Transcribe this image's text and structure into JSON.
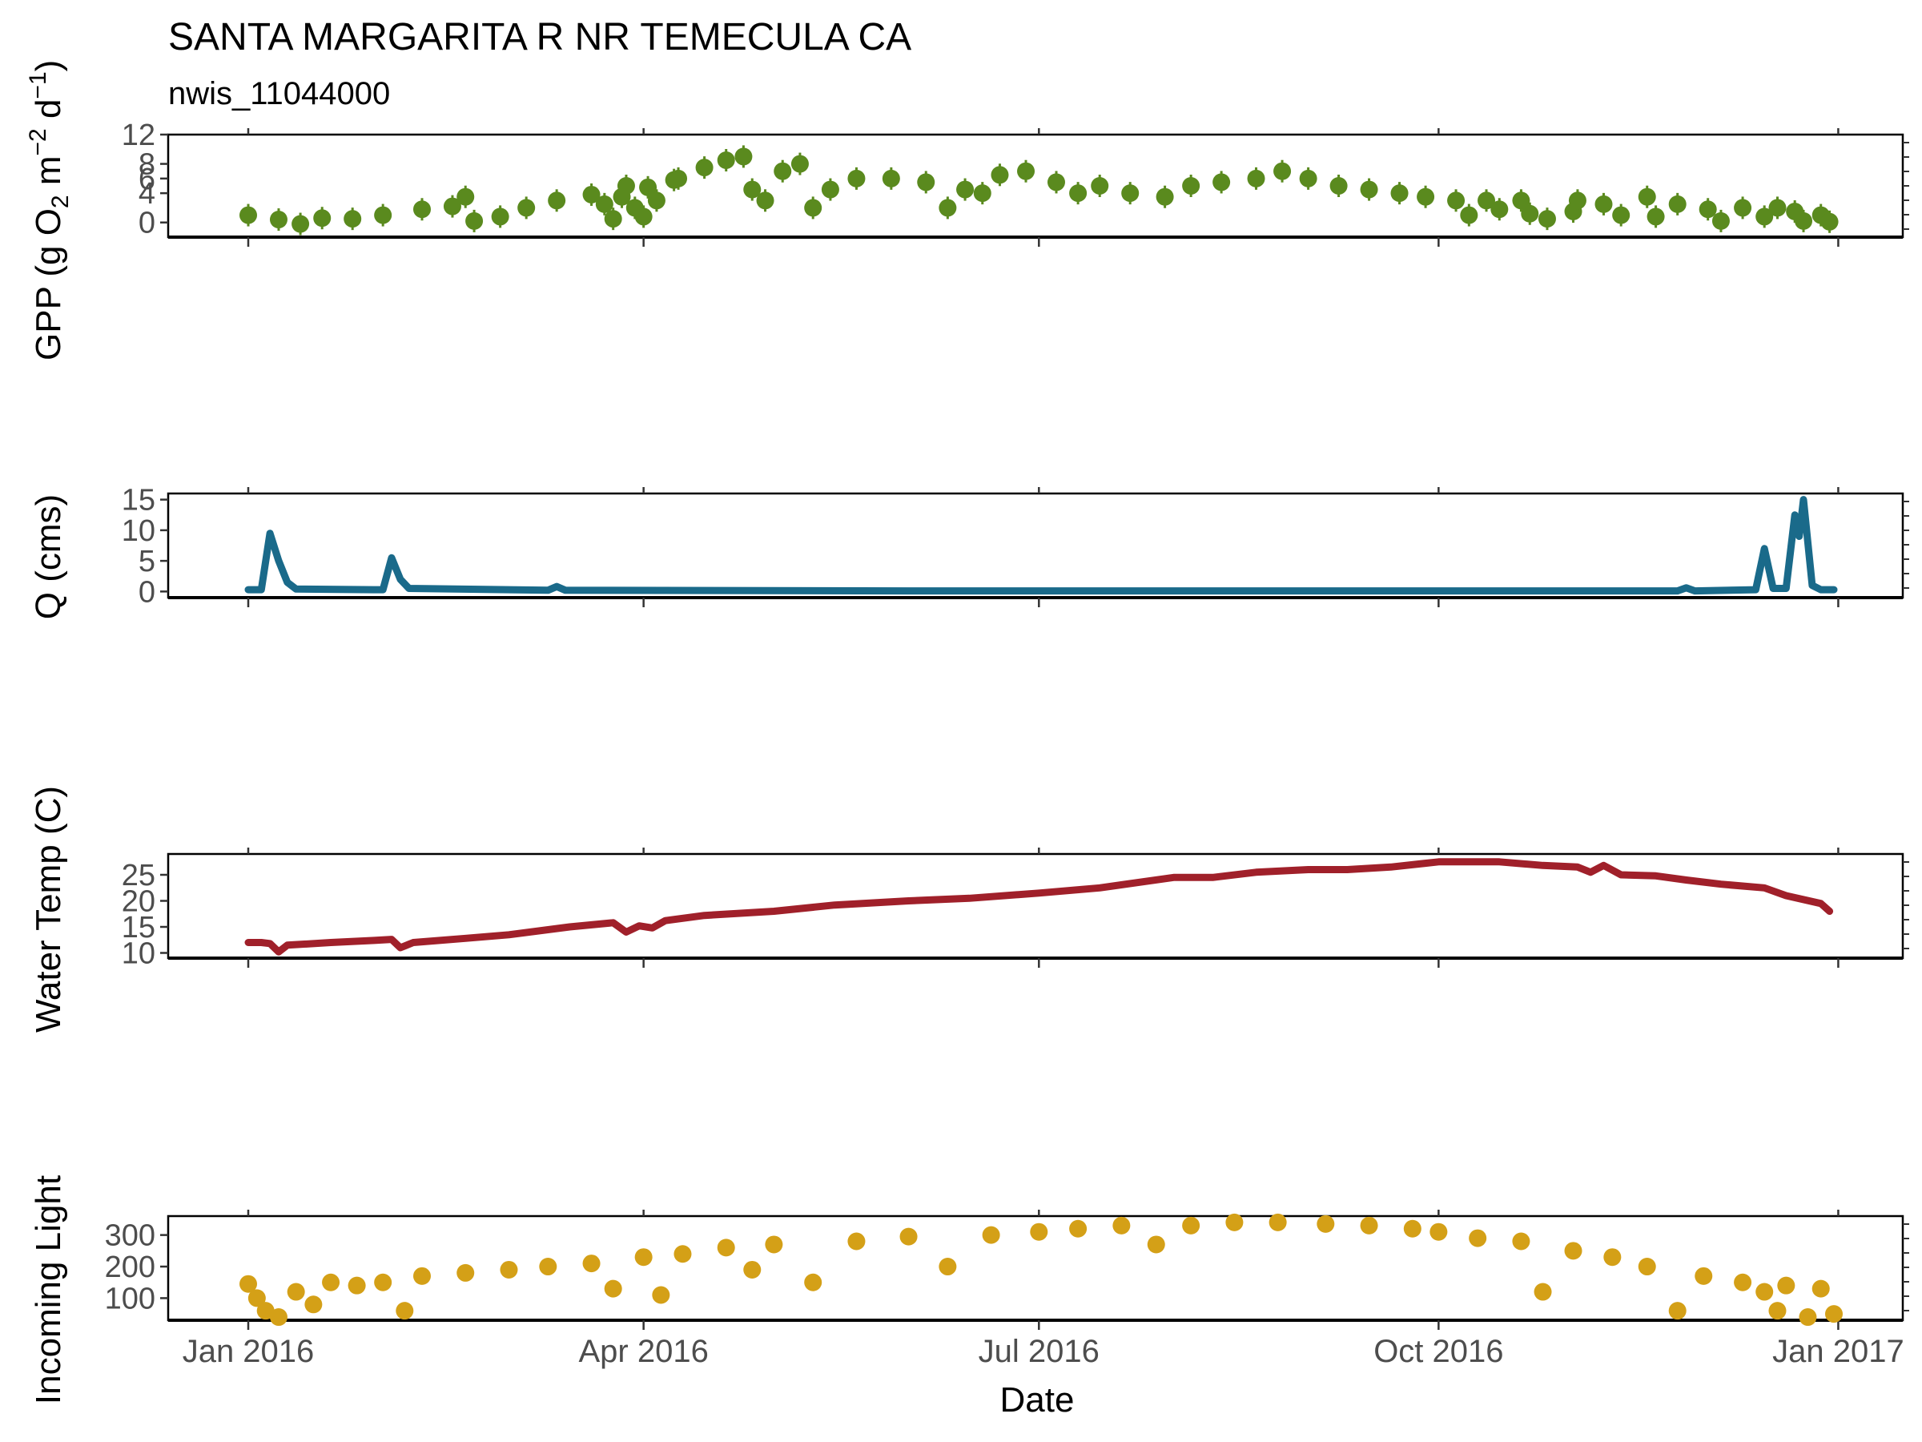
{
  "chart_data": {
    "type": "multi-panel time series",
    "title": "SANTA MARGARITA R NR TEMECULA CA",
    "subtitle": "nwis_11044000",
    "xlabel": "Date",
    "x_range": [
      "2016-01-01",
      "2016-12-31"
    ],
    "x_ticks": [
      {
        "date": "2016-01-01",
        "label": "Jan 2016"
      },
      {
        "date": "2016-04-01",
        "label": "Apr 2016"
      },
      {
        "date": "2016-07-01",
        "label": "Jul 2016"
      },
      {
        "date": "2016-10-01",
        "label": "Oct 2016"
      },
      {
        "date": "2017-01-01",
        "label": "Jan 2017"
      }
    ],
    "panels": [
      {
        "id": "gpp",
        "type": "scatter with error bars",
        "ylabel_parts": {
          "main": "GPP (g  O",
          "sub2": "2",
          "mid": " m",
          "sup1": "−2",
          "end": " d",
          "sup2": "−1",
          "close": ")"
        },
        "ylim": [
          -2,
          12
        ],
        "yticks": [
          0,
          4,
          8,
          12
        ],
        "ytick_labels": [
          "0",
          "4",
          "8",
          "12"
        ],
        "extra_tick_label": {
          "value": 6,
          "label": "6"
        },
        "color": "#5a8a1e",
        "series_points": [
          [
            "2016-01-01",
            1.0
          ],
          [
            "2016-01-08",
            0.4
          ],
          [
            "2016-01-13",
            -0.2
          ],
          [
            "2016-01-18",
            0.6
          ],
          [
            "2016-01-25",
            0.5
          ],
          [
            "2016-02-01",
            1.0
          ],
          [
            "2016-02-10",
            1.8
          ],
          [
            "2016-02-17",
            2.2
          ],
          [
            "2016-02-20",
            3.5
          ],
          [
            "2016-02-22",
            0.2
          ],
          [
            "2016-02-28",
            0.8
          ],
          [
            "2016-03-05",
            2.0
          ],
          [
            "2016-03-12",
            3.0
          ],
          [
            "2016-03-20",
            3.8
          ],
          [
            "2016-03-28",
            5.0
          ],
          [
            "2016-04-02",
            4.8
          ],
          [
            "2016-04-08",
            5.8
          ],
          [
            "2016-03-23",
            2.5
          ],
          [
            "2016-03-25",
            0.5
          ],
          [
            "2016-03-27",
            3.5
          ],
          [
            "2016-03-30",
            2.0
          ],
          [
            "2016-04-01",
            0.8
          ],
          [
            "2016-04-04",
            3.0
          ],
          [
            "2016-04-09",
            6.0
          ],
          [
            "2016-04-15",
            7.5
          ],
          [
            "2016-04-20",
            8.5
          ],
          [
            "2016-04-24",
            9.0
          ],
          [
            "2016-04-26",
            4.5
          ],
          [
            "2016-04-29",
            3.0
          ],
          [
            "2016-05-03",
            7.0
          ],
          [
            "2016-05-07",
            8.0
          ],
          [
            "2016-05-10",
            2.0
          ],
          [
            "2016-05-14",
            4.5
          ],
          [
            "2016-05-20",
            6.0
          ],
          [
            "2016-05-28",
            6.0
          ],
          [
            "2016-06-05",
            5.5
          ],
          [
            "2016-06-10",
            2.0
          ],
          [
            "2016-06-14",
            4.5
          ],
          [
            "2016-06-18",
            4.0
          ],
          [
            "2016-06-22",
            6.5
          ],
          [
            "2016-06-28",
            7.0
          ],
          [
            "2016-07-05",
            5.5
          ],
          [
            "2016-07-10",
            4.0
          ],
          [
            "2016-07-15",
            5.0
          ],
          [
            "2016-07-22",
            4.0
          ],
          [
            "2016-07-30",
            3.5
          ],
          [
            "2016-08-05",
            5.0
          ],
          [
            "2016-08-12",
            5.5
          ],
          [
            "2016-08-20",
            6.0
          ],
          [
            "2016-08-26",
            7.0
          ],
          [
            "2016-09-01",
            6.0
          ],
          [
            "2016-09-08",
            5.0
          ],
          [
            "2016-09-15",
            4.5
          ],
          [
            "2016-09-22",
            4.0
          ],
          [
            "2016-09-28",
            3.5
          ],
          [
            "2016-10-05",
            3.0
          ],
          [
            "2016-10-08",
            1.0
          ],
          [
            "2016-10-12",
            3.0
          ],
          [
            "2016-10-20",
            3.0
          ],
          [
            "2016-10-26",
            0.5
          ],
          [
            "2016-11-02",
            3.0
          ],
          [
            "2016-11-08",
            2.5
          ],
          [
            "2016-11-12",
            1.0
          ],
          [
            "2016-11-18",
            3.5
          ],
          [
            "2016-11-25",
            2.5
          ],
          [
            "2016-12-02",
            1.8
          ],
          [
            "2016-12-10",
            2.0
          ],
          [
            "2016-12-18",
            2.0
          ],
          [
            "2016-12-22",
            1.5
          ],
          [
            "2016-12-28",
            1.0
          ],
          [
            "2016-10-15",
            1.8
          ],
          [
            "2016-10-22",
            1.2
          ],
          [
            "2016-11-01",
            1.5
          ],
          [
            "2016-11-20",
            0.8
          ],
          [
            "2016-12-05",
            0.2
          ],
          [
            "2016-12-15",
            0.8
          ],
          [
            "2016-12-24",
            0.2
          ],
          [
            "2016-12-30",
            0.1
          ]
        ]
      },
      {
        "id": "q",
        "type": "line",
        "ylabel": "Q (cms)",
        "ylim": [
          -1,
          16
        ],
        "yticks": [
          0,
          5,
          10,
          15
        ],
        "ytick_labels": [
          "0",
          "5",
          "10",
          "15"
        ],
        "color": "#1a6a8a",
        "series_points": [
          [
            "2016-01-01",
            0.3
          ],
          [
            "2016-01-04",
            0.3
          ],
          [
            "2016-01-06",
            9.5
          ],
          [
            "2016-01-08",
            5.0
          ],
          [
            "2016-01-10",
            1.5
          ],
          [
            "2016-01-12",
            0.4
          ],
          [
            "2016-01-30",
            0.3
          ],
          [
            "2016-02-01",
            0.3
          ],
          [
            "2016-02-03",
            5.5
          ],
          [
            "2016-02-05",
            2.0
          ],
          [
            "2016-02-07",
            0.5
          ],
          [
            "2016-03-10",
            0.2
          ],
          [
            "2016-03-12",
            0.8
          ],
          [
            "2016-03-14",
            0.2
          ],
          [
            "2016-06-01",
            0.1
          ],
          [
            "2016-09-01",
            0.1
          ],
          [
            "2016-11-25",
            0.1
          ],
          [
            "2016-11-27",
            0.6
          ],
          [
            "2016-11-29",
            0.1
          ],
          [
            "2016-12-13",
            0.3
          ],
          [
            "2016-12-15",
            7.0
          ],
          [
            "2016-12-17",
            0.5
          ],
          [
            "2016-12-20",
            0.5
          ],
          [
            "2016-12-22",
            12.5
          ],
          [
            "2016-12-23",
            9.0
          ],
          [
            "2016-12-24",
            15.0
          ],
          [
            "2016-12-26",
            1.0
          ],
          [
            "2016-12-28",
            0.3
          ],
          [
            "2016-12-31",
            0.3
          ]
        ]
      },
      {
        "id": "temp",
        "type": "line",
        "ylabel": "Water Temp (C)",
        "ylim": [
          9,
          29
        ],
        "yticks": [
          10,
          15,
          20,
          25
        ],
        "ytick_labels": [
          "10",
          "15",
          "20",
          "25"
        ],
        "color": "#a0202a",
        "series_points": [
          [
            "2016-01-01",
            12.0
          ],
          [
            "2016-01-04",
            12.0
          ],
          [
            "2016-01-06",
            11.8
          ],
          [
            "2016-01-08",
            10.2
          ],
          [
            "2016-01-10",
            11.5
          ],
          [
            "2016-01-20",
            12.0
          ],
          [
            "2016-01-30",
            12.4
          ],
          [
            "2016-02-03",
            12.6
          ],
          [
            "2016-02-05",
            11.0
          ],
          [
            "2016-02-08",
            12.0
          ],
          [
            "2016-02-20",
            12.8
          ],
          [
            "2016-03-01",
            13.5
          ],
          [
            "2016-03-15",
            15.0
          ],
          [
            "2016-03-25",
            15.8
          ],
          [
            "2016-03-28",
            14.0
          ],
          [
            "2016-03-31",
            15.2
          ],
          [
            "2016-04-03",
            14.8
          ],
          [
            "2016-04-06",
            16.2
          ],
          [
            "2016-04-15",
            17.2
          ],
          [
            "2016-05-01",
            18.0
          ],
          [
            "2016-05-15",
            19.2
          ],
          [
            "2016-06-01",
            20.0
          ],
          [
            "2016-06-15",
            20.5
          ],
          [
            "2016-07-01",
            21.5
          ],
          [
            "2016-07-15",
            22.5
          ],
          [
            "2016-08-01",
            24.5
          ],
          [
            "2016-08-10",
            24.5
          ],
          [
            "2016-08-20",
            25.5
          ],
          [
            "2016-09-01",
            26.0
          ],
          [
            "2016-09-10",
            26.0
          ],
          [
            "2016-09-20",
            26.5
          ],
          [
            "2016-10-01",
            27.5
          ],
          [
            "2016-10-15",
            27.5
          ],
          [
            "2016-10-25",
            26.8
          ],
          [
            "2016-11-02",
            26.5
          ],
          [
            "2016-11-05",
            25.5
          ],
          [
            "2016-11-08",
            26.8
          ],
          [
            "2016-11-12",
            25.0
          ],
          [
            "2016-11-20",
            24.8
          ],
          [
            "2016-11-27",
            24.0
          ],
          [
            "2016-12-05",
            23.2
          ],
          [
            "2016-12-15",
            22.5
          ],
          [
            "2016-12-20",
            21.0
          ],
          [
            "2016-12-28",
            19.5
          ],
          [
            "2016-12-30",
            18.0
          ]
        ]
      },
      {
        "id": "light",
        "type": "scatter",
        "ylabel": "Incoming Light",
        "ylim": [
          30,
          360
        ],
        "yticks": [
          100,
          200,
          300
        ],
        "ytick_labels": [
          "100",
          "200",
          "300"
        ],
        "color": "#d4a017",
        "series_points": [
          [
            "2016-01-01",
            145
          ],
          [
            "2016-01-03",
            100
          ],
          [
            "2016-01-05",
            60
          ],
          [
            "2016-01-08",
            40
          ],
          [
            "2016-01-12",
            120
          ],
          [
            "2016-01-16",
            80
          ],
          [
            "2016-01-20",
            150
          ],
          [
            "2016-01-26",
            140
          ],
          [
            "2016-02-01",
            150
          ],
          [
            "2016-02-06",
            60
          ],
          [
            "2016-02-10",
            170
          ],
          [
            "2016-02-20",
            180
          ],
          [
            "2016-03-01",
            190
          ],
          [
            "2016-03-10",
            200
          ],
          [
            "2016-03-20",
            210
          ],
          [
            "2016-03-25",
            130
          ],
          [
            "2016-04-01",
            230
          ],
          [
            "2016-04-05",
            110
          ],
          [
            "2016-04-10",
            240
          ],
          [
            "2016-04-20",
            260
          ],
          [
            "2016-04-26",
            190
          ],
          [
            "2016-05-01",
            270
          ],
          [
            "2016-05-10",
            150
          ],
          [
            "2016-05-20",
            280
          ],
          [
            "2016-06-01",
            295
          ],
          [
            "2016-06-10",
            200
          ],
          [
            "2016-06-20",
            300
          ],
          [
            "2016-07-01",
            310
          ],
          [
            "2016-07-10",
            320
          ],
          [
            "2016-07-20",
            330
          ],
          [
            "2016-07-28",
            270
          ],
          [
            "2016-08-05",
            330
          ],
          [
            "2016-08-15",
            340
          ],
          [
            "2016-08-25",
            340
          ],
          [
            "2016-09-05",
            335
          ],
          [
            "2016-09-15",
            330
          ],
          [
            "2016-09-25",
            320
          ],
          [
            "2016-10-01",
            310
          ],
          [
            "2016-10-10",
            290
          ],
          [
            "2016-10-20",
            280
          ],
          [
            "2016-10-25",
            120
          ],
          [
            "2016-11-01",
            250
          ],
          [
            "2016-11-10",
            230
          ],
          [
            "2016-11-18",
            200
          ],
          [
            "2016-11-25",
            60
          ],
          [
            "2016-12-01",
            170
          ],
          [
            "2016-12-10",
            150
          ],
          [
            "2016-12-15",
            120
          ],
          [
            "2016-12-18",
            60
          ],
          [
            "2016-12-20",
            140
          ],
          [
            "2016-12-25",
            40
          ],
          [
            "2016-12-28",
            130
          ],
          [
            "2016-12-31",
            50
          ]
        ]
      }
    ]
  }
}
